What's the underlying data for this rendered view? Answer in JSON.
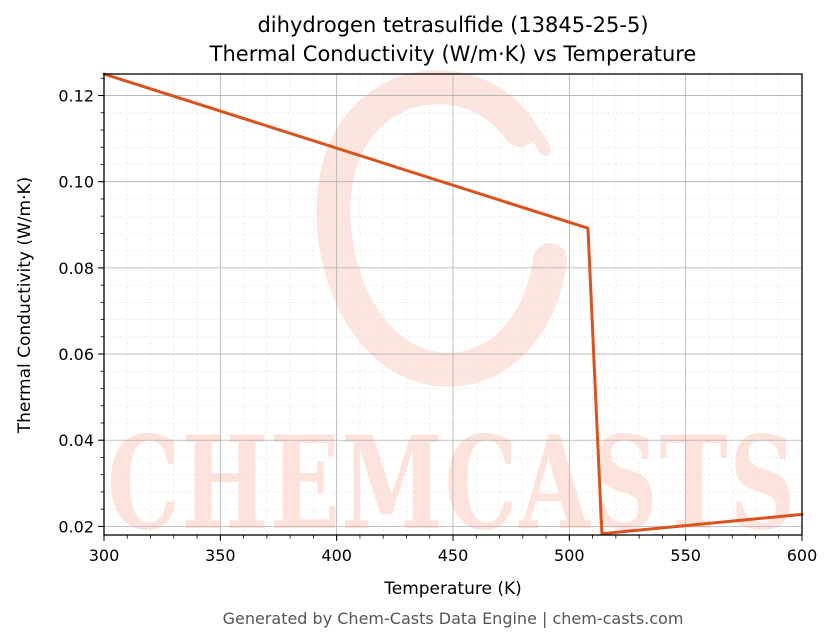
{
  "chart_data": {
    "type": "line",
    "title": "dihydrogen tetrasulfide (13845-25-5)",
    "subtitle": "Thermal Conductivity (W/m·K) vs Temperature",
    "xlabel": "Temperature (K)",
    "ylabel": "Thermal Conductivity (W/m·K)",
    "xlim": [
      300,
      600
    ],
    "ylim": [
      0.018,
      0.125
    ],
    "x_ticks": [
      300,
      350,
      400,
      450,
      500,
      550,
      600
    ],
    "y_ticks": [
      0.02,
      0.04,
      0.06,
      0.08,
      0.1,
      0.12
    ],
    "x_tick_labels": [
      "300",
      "350",
      "400",
      "450",
      "500",
      "550",
      "600"
    ],
    "y_tick_labels": [
      "0.02",
      "0.04",
      "0.06",
      "0.08",
      "0.10",
      "0.12"
    ],
    "grid": true,
    "minor_grid": true,
    "series": [
      {
        "color": "#d9531e",
        "x": [
          300,
          508,
          514,
          600
        ],
        "y": [
          0.125,
          0.0892,
          0.0183,
          0.0228
        ]
      }
    ]
  },
  "watermark": {
    "text": "CHEMCASTS",
    "color": "#fde3dc"
  },
  "footer": "Generated by Chem-Casts Data Engine | chem-casts.com"
}
